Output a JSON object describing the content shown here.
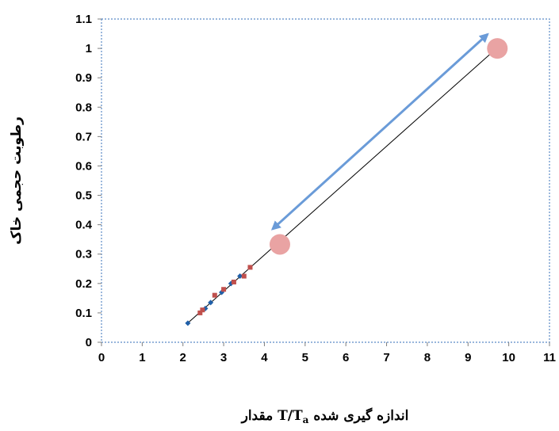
{
  "chart_data": {
    "type": "scatter",
    "title": "",
    "xlabel": "مقدار T/Ta اندازه گیری شده",
    "xlabel_parts": {
      "pre": "مقدار",
      "T": "T/T",
      "sub": "a",
      "post": "اندازه گیری شده"
    },
    "ylabel": "رطوبت حجمی خاک",
    "xlim": [
      0,
      11
    ],
    "ylim": [
      0,
      1.1
    ],
    "x_ticks": [
      "0",
      "1",
      "2",
      "3",
      "4",
      "5",
      "6",
      "7",
      "8",
      "9",
      "10",
      "11"
    ],
    "y_ticks": [
      "0",
      "0.1",
      "0.2",
      "0.3",
      "0.4",
      "0.5",
      "0.6",
      "0.7",
      "0.8",
      "0.9",
      "1",
      "1.1"
    ],
    "grid": false,
    "plot_border": "dotted",
    "series": [
      {
        "marker": "diamond",
        "color": "#1f5fa8",
        "points": [
          [
            2.12,
            0.065
          ],
          [
            2.55,
            0.115
          ],
          [
            2.68,
            0.135
          ],
          [
            2.95,
            0.17
          ],
          [
            3.18,
            0.2
          ],
          [
            3.4,
            0.225
          ]
        ]
      },
      {
        "marker": "square",
        "color": "#c0504d",
        "points": [
          [
            2.42,
            0.1
          ],
          [
            2.48,
            0.11
          ],
          [
            2.78,
            0.16
          ],
          [
            3.0,
            0.18
          ],
          [
            3.25,
            0.205
          ],
          [
            3.5,
            0.225
          ],
          [
            3.65,
            0.255
          ]
        ]
      }
    ],
    "fit_line": {
      "color": "#000000",
      "from": [
        2.1,
        0.063
      ],
      "to": [
        9.7,
        1.0
      ]
    },
    "highlight_circles": {
      "color": "#e9a3a3",
      "points": [
        [
          4.38,
          0.333
        ],
        [
          9.72,
          1.0
        ]
      ]
    },
    "double_arrow": {
      "color": "#6a9bd8",
      "from": [
        4.2,
        0.385
      ],
      "to": [
        9.48,
        1.048
      ]
    }
  }
}
